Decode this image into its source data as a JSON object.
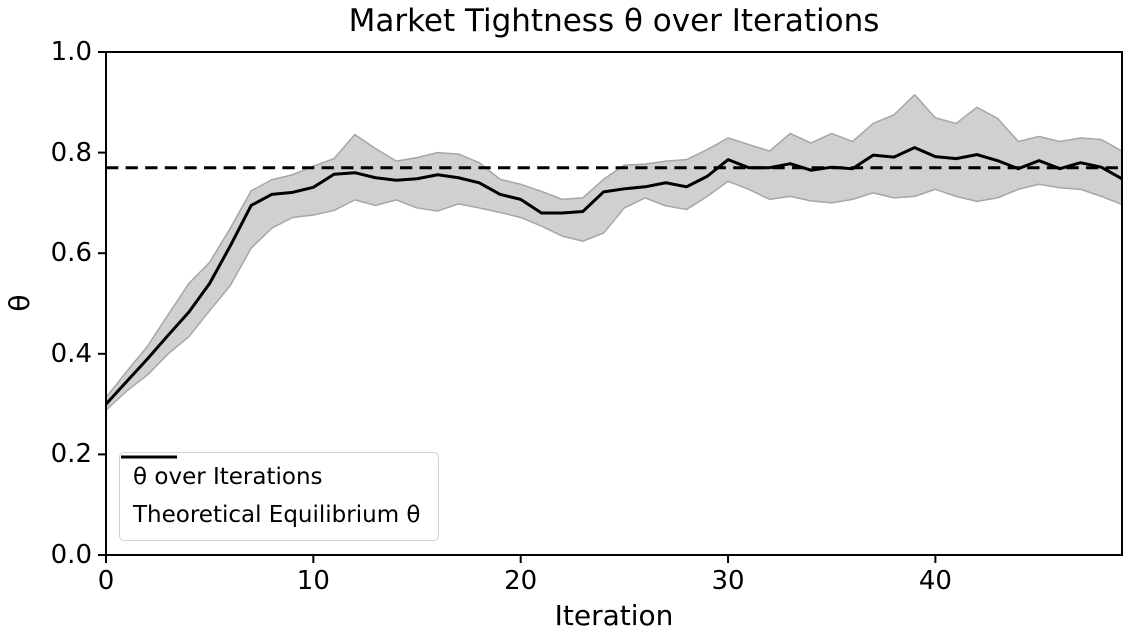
{
  "title": "Market Tightness θ over Iterations",
  "xlabel": "Iteration",
  "ylabel": "θ",
  "legend": {
    "series_label": "θ over Iterations",
    "equilibrium_label": "Theoretical Equilibrium θ"
  },
  "colors": {
    "line": "#000000",
    "equilibrium_line": "#000000",
    "band_fill": "#d0d0d0",
    "band_edge": "#a6a6a6",
    "background": "#ffffff",
    "legend_border": "#d2d2d2"
  },
  "chart_data": {
    "type": "line",
    "title": "Market Tightness θ over Iterations",
    "xlabel": "Iteration",
    "ylabel": "θ",
    "xlim": [
      0,
      49
    ],
    "ylim": [
      0.0,
      1.0
    ],
    "xticks": [
      0,
      10,
      20,
      30,
      40
    ],
    "yticks": [
      0.0,
      0.2,
      0.4,
      0.6,
      0.8,
      1.0
    ],
    "grid": false,
    "legend_position": "lower left",
    "x": [
      0,
      1,
      2,
      3,
      4,
      5,
      6,
      7,
      8,
      9,
      10,
      11,
      12,
      13,
      14,
      15,
      16,
      17,
      18,
      19,
      20,
      21,
      22,
      23,
      24,
      25,
      26,
      27,
      28,
      29,
      30,
      31,
      32,
      33,
      34,
      35,
      36,
      37,
      38,
      39,
      40,
      41,
      42,
      43,
      44,
      45,
      46,
      47,
      48,
      49
    ],
    "series": [
      {
        "name": "θ over Iterations",
        "style": "solid",
        "values": [
          0.3,
          0.345,
          0.39,
          0.437,
          0.483,
          0.54,
          0.615,
          0.695,
          0.717,
          0.721,
          0.731,
          0.757,
          0.76,
          0.75,
          0.745,
          0.748,
          0.756,
          0.75,
          0.74,
          0.717,
          0.707,
          0.68,
          0.68,
          0.683,
          0.722,
          0.728,
          0.732,
          0.74,
          0.732,
          0.753,
          0.786,
          0.77,
          0.77,
          0.778,
          0.765,
          0.771,
          0.768,
          0.795,
          0.791,
          0.81,
          0.792,
          0.788,
          0.796,
          0.784,
          0.768,
          0.784,
          0.768,
          0.78,
          0.771,
          0.748
        ]
      }
    ],
    "band": {
      "name": "confidence band",
      "upper": [
        0.313,
        0.365,
        0.415,
        0.478,
        0.54,
        0.582,
        0.65,
        0.724,
        0.746,
        0.756,
        0.773,
        0.788,
        0.836,
        0.808,
        0.783,
        0.79,
        0.8,
        0.797,
        0.78,
        0.747,
        0.737,
        0.723,
        0.707,
        0.71,
        0.747,
        0.775,
        0.777,
        0.783,
        0.786,
        0.806,
        0.829,
        0.816,
        0.803,
        0.838,
        0.819,
        0.838,
        0.822,
        0.858,
        0.875,
        0.915,
        0.869,
        0.858,
        0.89,
        0.868,
        0.822,
        0.832,
        0.822,
        0.829,
        0.826,
        0.803
      ],
      "lower": [
        0.288,
        0.326,
        0.358,
        0.4,
        0.434,
        0.486,
        0.536,
        0.61,
        0.65,
        0.671,
        0.676,
        0.685,
        0.706,
        0.695,
        0.706,
        0.69,
        0.684,
        0.698,
        0.69,
        0.681,
        0.671,
        0.654,
        0.634,
        0.624,
        0.64,
        0.69,
        0.71,
        0.694,
        0.687,
        0.713,
        0.743,
        0.727,
        0.707,
        0.713,
        0.704,
        0.7,
        0.707,
        0.72,
        0.71,
        0.713,
        0.727,
        0.713,
        0.703,
        0.71,
        0.727,
        0.737,
        0.73,
        0.727,
        0.713,
        0.697
      ]
    },
    "equilibrium": {
      "name": "Theoretical Equilibrium θ",
      "style": "dashed",
      "value": 0.77
    }
  }
}
